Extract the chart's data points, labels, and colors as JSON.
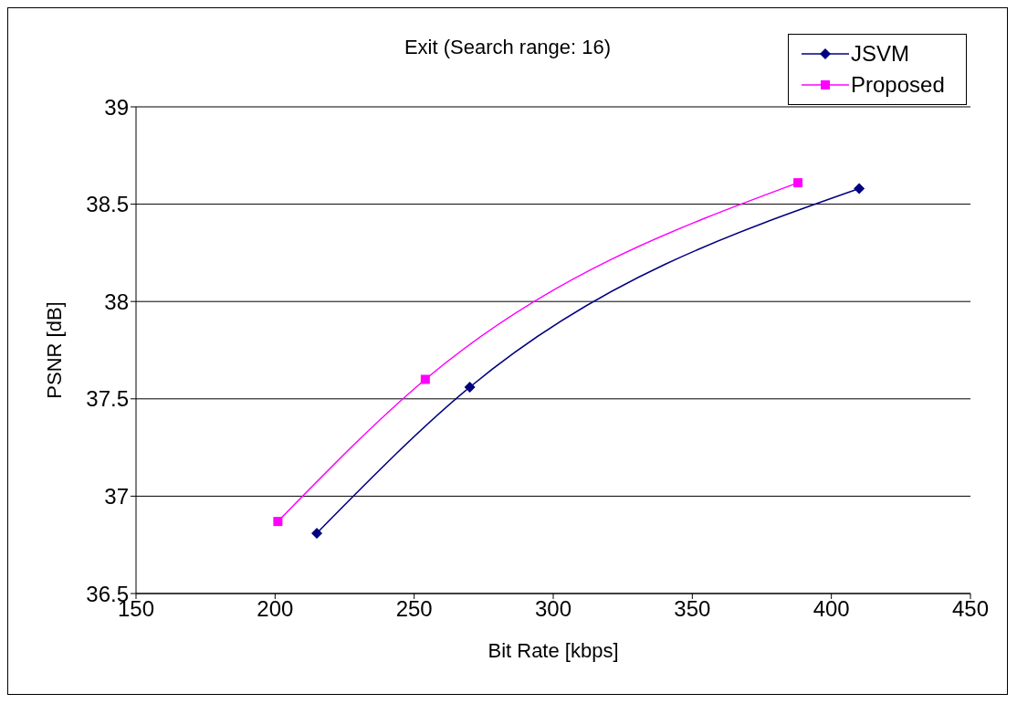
{
  "chart_data": {
    "type": "line",
    "title": "Exit (Search range: 16)",
    "xlabel": "Bit Rate [kbps]",
    "ylabel": "PSNR [dB]",
    "series": [
      {
        "name": "JSVM",
        "color": "#000080",
        "marker": "diamond",
        "x": [
          215,
          270,
          410
        ],
        "values": [
          36.81,
          37.56,
          38.58
        ]
      },
      {
        "name": "Proposed",
        "color": "#ff00ff",
        "marker": "square",
        "x": [
          201,
          254,
          388
        ],
        "values": [
          36.87,
          37.6,
          38.61
        ]
      }
    ],
    "xlim": [
      150,
      450
    ],
    "xticks": [
      150,
      200,
      250,
      300,
      350,
      400,
      450
    ],
    "ylim": [
      36.5,
      39
    ],
    "yticks": [
      36.5,
      37,
      37.5,
      38,
      38.5,
      39
    ],
    "grid": "y",
    "legend": "top right"
  }
}
